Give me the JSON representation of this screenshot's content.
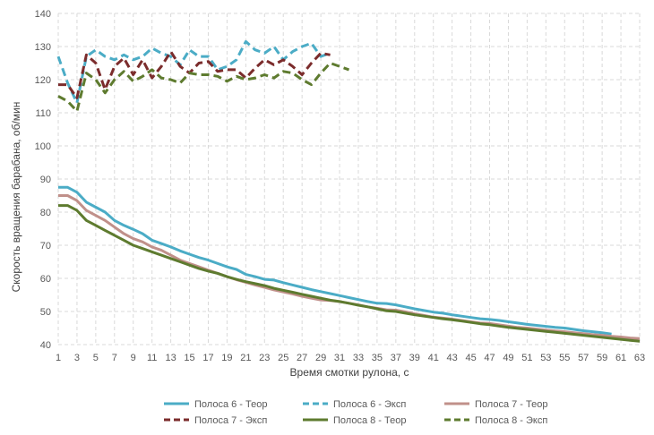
{
  "chart_data": {
    "type": "line",
    "title": "",
    "xlabel": "Время смотки рулона, с",
    "ylabel": "Скорость вращения барабана, об/мин",
    "ylim": [
      40,
      140
    ],
    "xlim": [
      1,
      63
    ],
    "yticks": [
      40,
      50,
      60,
      70,
      80,
      90,
      100,
      110,
      120,
      130,
      140
    ],
    "xticks": [
      1,
      3,
      5,
      7,
      9,
      11,
      13,
      15,
      17,
      19,
      21,
      23,
      25,
      27,
      29,
      31,
      33,
      35,
      37,
      39,
      41,
      43,
      45,
      47,
      49,
      51,
      53,
      55,
      57,
      59,
      61,
      63
    ],
    "grid": true,
    "legend_position": "bottom",
    "series": [
      {
        "name": "Полоса 6 - Теор",
        "color": "#4bacc6",
        "dash": false,
        "x": [
          1,
          2,
          3,
          4,
          5,
          6,
          7,
          8,
          9,
          10,
          11,
          12,
          13,
          14,
          15,
          16,
          17,
          18,
          19,
          20,
          21,
          22,
          23,
          24,
          25,
          26,
          27,
          28,
          29,
          30,
          31,
          32,
          33,
          34,
          35,
          36,
          37,
          38,
          39,
          40,
          41,
          42,
          43,
          44,
          45,
          46,
          47,
          48,
          49,
          50,
          51,
          52,
          53,
          54,
          55,
          56,
          57,
          58,
          59,
          60
        ],
        "values": [
          87.5,
          87.5,
          86,
          83,
          81.5,
          80,
          77.5,
          76,
          74.8,
          73.5,
          71.5,
          70.5,
          69.5,
          68.3,
          67.3,
          66.3,
          65.5,
          64.5,
          63.5,
          62.7,
          61.2,
          60.5,
          59.7,
          59.5,
          58.7,
          58,
          57.3,
          56.6,
          56,
          55.4,
          54.8,
          54.2,
          53.6,
          53,
          52.5,
          52.4,
          52,
          51.4,
          50.8,
          50.3,
          49.8,
          49.5,
          49,
          48.6,
          48.2,
          47.8,
          47.6,
          47.3,
          46.9,
          46.5,
          46.1,
          45.8,
          45.5,
          45.2,
          45,
          44.6,
          44.2,
          43.9,
          43.6,
          43.2
        ]
      },
      {
        "name": "Полоса 6 - Эксп",
        "color": "#4bacc6",
        "dash": true,
        "x": [
          1,
          2,
          3,
          4,
          5,
          6,
          7,
          8,
          9,
          10,
          11,
          12,
          13,
          14,
          15,
          16,
          17,
          18,
          19,
          20,
          21,
          22,
          23,
          24,
          25,
          26,
          27,
          28,
          29,
          30
        ],
        "values": [
          127,
          119,
          113,
          127,
          129,
          127,
          126,
          127.5,
          126,
          127,
          129.5,
          128,
          127,
          124.5,
          129,
          127,
          127,
          123,
          124,
          126,
          131.5,
          129,
          128,
          130,
          126,
          128.5,
          130,
          131,
          127,
          128
        ]
      },
      {
        "name": "Полоса 7 - Теор",
        "color": "#c0908a",
        "dash": false,
        "x": [
          1,
          2,
          3,
          4,
          5,
          6,
          7,
          8,
          9,
          10,
          11,
          12,
          13,
          14,
          15,
          16,
          17,
          18,
          19,
          20,
          21,
          22,
          23,
          24,
          25,
          26,
          27,
          28,
          29,
          30,
          31,
          32,
          33,
          34,
          35,
          36,
          37,
          38,
          39,
          40,
          41,
          42,
          43,
          44,
          45,
          46,
          47,
          48,
          49,
          50,
          51,
          52,
          53,
          54,
          55,
          56,
          57,
          58,
          59,
          60,
          61,
          62,
          63
        ],
        "values": [
          85,
          85,
          83.5,
          80.5,
          79,
          77.5,
          75.5,
          73.5,
          72,
          71,
          69.5,
          68.5,
          67,
          65.5,
          64.5,
          63.5,
          62.5,
          61.5,
          60.5,
          59.6,
          58.8,
          58,
          57.3,
          56.5,
          55.9,
          55.3,
          54.6,
          54,
          53.5,
          53.3,
          53,
          52.5,
          52,
          51.4,
          51,
          50.5,
          50.4,
          49.9,
          49.3,
          48.8,
          48.3,
          48,
          47.7,
          47.3,
          46.9,
          46.5,
          46.4,
          46,
          45.6,
          45.2,
          45,
          44.7,
          44.4,
          44.1,
          43.9,
          43.6,
          43.3,
          43,
          42.8,
          42.5,
          42.3,
          42,
          41.8
        ]
      },
      {
        "name": "Полоса 7 - Эксп",
        "color": "#7b2c2c",
        "dash": true,
        "x": [
          1,
          2,
          3,
          4,
          5,
          6,
          7,
          8,
          9,
          10,
          11,
          12,
          13,
          14,
          15,
          16,
          17,
          18,
          19,
          20,
          21,
          22,
          23,
          24,
          25,
          26,
          27,
          28,
          29,
          30
        ],
        "values": [
          118.5,
          118.5,
          114.5,
          127.5,
          125,
          117,
          124,
          126.5,
          121.5,
          126,
          120.5,
          124,
          128.5,
          124,
          122,
          125,
          125.5,
          122.5,
          123,
          123,
          120.5,
          123.5,
          126,
          124.5,
          126,
          124,
          121.5,
          125,
          128,
          127.5
        ]
      },
      {
        "name": "Полоса 8 - Теор",
        "color": "#5e7b2f",
        "dash": false,
        "x": [
          1,
          2,
          3,
          4,
          5,
          6,
          7,
          8,
          9,
          10,
          11,
          12,
          13,
          14,
          15,
          16,
          17,
          18,
          19,
          20,
          21,
          22,
          23,
          24,
          25,
          26,
          27,
          28,
          29,
          30,
          31,
          32,
          33,
          34,
          35,
          36,
          37,
          38,
          39,
          40,
          41,
          42,
          43,
          44,
          45,
          46,
          47,
          48,
          49,
          50,
          51,
          52,
          53,
          54,
          55,
          56,
          57,
          58,
          59,
          60,
          61,
          62,
          63
        ],
        "values": [
          82,
          82,
          80.5,
          77.5,
          76,
          74.5,
          73,
          71.5,
          70,
          69,
          68,
          67,
          66,
          65,
          64,
          63,
          62.2,
          61.5,
          60.5,
          59.7,
          59,
          58.4,
          57.8,
          57,
          56.4,
          55.8,
          55.2,
          54.6,
          54,
          53.4,
          53,
          52.5,
          51.9,
          51.4,
          50.8,
          50.2,
          50,
          49.5,
          49,
          48.6,
          48.2,
          47.8,
          47.5,
          47.1,
          46.7,
          46.3,
          46,
          45.6,
          45.2,
          44.9,
          44.6,
          44.3,
          44,
          43.7,
          43.4,
          43.1,
          42.8,
          42.5,
          42.2,
          41.9,
          41.6,
          41.3,
          41
        ]
      },
      {
        "name": "Полоса 8 - Эксп",
        "color": "#5e7b2f",
        "dash": true,
        "x": [
          1,
          2,
          3,
          4,
          5,
          6,
          7,
          8,
          9,
          10,
          11,
          12,
          13,
          14,
          15,
          16,
          17,
          18,
          19,
          20,
          21,
          22,
          23,
          24,
          25,
          26,
          27,
          28,
          29,
          30,
          31,
          32
        ],
        "values": [
          115,
          113.5,
          110.5,
          122,
          120,
          116,
          120,
          122.5,
          119.5,
          121,
          123,
          120.5,
          120,
          119,
          122,
          121.5,
          121.5,
          121,
          119.5,
          121,
          120,
          120.5,
          121.5,
          120.5,
          122.5,
          122,
          120,
          118.5,
          122,
          125,
          124,
          123
        ]
      }
    ]
  }
}
